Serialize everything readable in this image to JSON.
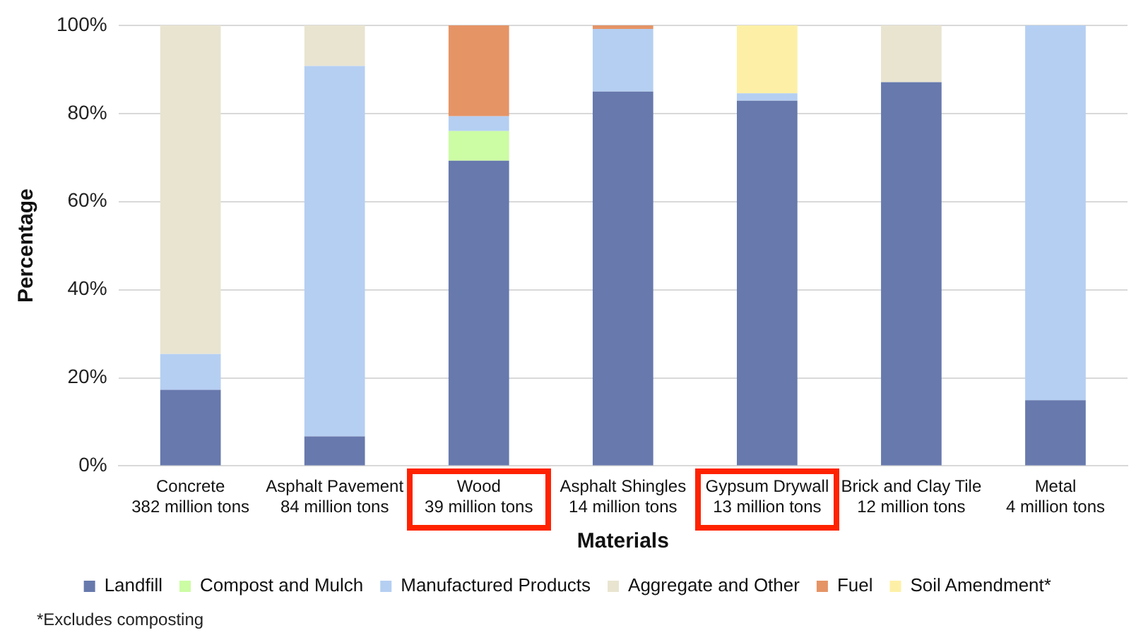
{
  "chart_data": {
    "type": "bar",
    "stacked": true,
    "xlabel": "Materials",
    "ylabel": "Percentage",
    "categories": [
      "Concrete\n382 million tons",
      "Asphalt Pavement\n84 million tons",
      "Wood\n39 million tons",
      "Asphalt Shingles\n14 million tons",
      "Gypsum Drywall\n13 million tons",
      "Brick and Clay Tile\n12 million tons",
      "Metal\n4 million tons"
    ],
    "series": [
      {
        "name": "Landfill",
        "color": "#6779ad",
        "values": [
          17.3,
          6.7,
          69.3,
          85.0,
          82.9,
          87.1,
          14.9
        ]
      },
      {
        "name": "Compost and Mulch",
        "color": "#ccfca4",
        "values": [
          0,
          0,
          6.7,
          0,
          0,
          0,
          0
        ]
      },
      {
        "name": "Manufactured Products",
        "color": "#b5cff2",
        "values": [
          8.1,
          84.1,
          3.4,
          14.2,
          1.7,
          0,
          85.1
        ]
      },
      {
        "name": "Aggregate and Other",
        "color": "#e9e4d0",
        "values": [
          74.6,
          9.2,
          0,
          0,
          0,
          12.9,
          0
        ]
      },
      {
        "name": "Fuel",
        "color": "#e59466",
        "values": [
          0,
          0,
          20.6,
          0.8,
          0,
          0,
          0
        ]
      },
      {
        "name": "Soil Amendment*",
        "color": "#fdf0a6",
        "values": [
          0,
          0,
          0,
          0,
          15.4,
          0,
          0
        ]
      }
    ],
    "ylim": [
      0,
      100
    ],
    "yticks": [
      {
        "value": 0,
        "label": "0%"
      },
      {
        "value": 20,
        "label": "20%"
      },
      {
        "value": 40,
        "label": "40%"
      },
      {
        "value": 60,
        "label": "60%"
      },
      {
        "value": 80,
        "label": "80%"
      },
      {
        "value": 100,
        "label": "100%"
      }
    ],
    "grid": "y",
    "legend": "bottom",
    "annotations": [
      "*Excludes composting"
    ]
  }
}
